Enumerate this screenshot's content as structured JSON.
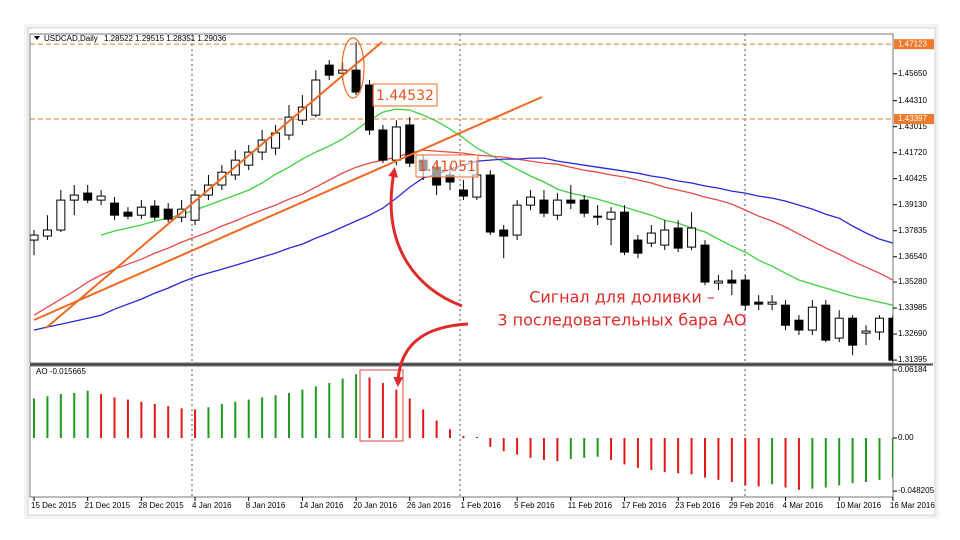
{
  "chart_data": [
    {
      "type": "candlestick",
      "title": "USDCAD,Daily",
      "quote": "1.28522 1.29515 1.28351 1.29036",
      "categories": [
        "15 Dec 2015",
        null,
        null,
        null,
        "21 Dec 2015",
        null,
        null,
        null,
        "28 Dec 2015",
        null,
        null,
        null,
        "4 Jan 2016",
        null,
        null,
        null,
        "8 Jan 2016",
        null,
        null,
        null,
        "14 Jan 2016",
        null,
        null,
        null,
        "20 Jan 2016",
        null,
        null,
        null,
        "26 Jan 2016",
        null,
        null,
        null,
        "1 Feb 2016",
        null,
        null,
        null,
        "5 Feb 2016",
        null,
        null,
        null,
        "11 Feb 2016",
        null,
        null,
        null,
        "17 Feb 2016",
        null,
        null,
        null,
        "23 Feb 2016",
        null,
        null,
        null,
        "29 Feb 2016",
        null,
        null,
        null,
        "4 Mar 2016",
        null,
        null,
        null,
        "10 Mar 2016",
        null,
        null,
        null,
        "16 Mar 2016"
      ],
      "open": [
        1.3737,
        1.3757,
        1.3787,
        1.3936,
        1.3971,
        1.3936,
        1.3921,
        1.3876,
        1.3861,
        1.3906,
        1.3891,
        1.3851,
        1.3836,
        1.3961,
        1.4011,
        1.4061,
        1.411,
        1.4175,
        1.4195,
        1.426,
        1.4334,
        1.4359,
        1.4608,
        1.4568,
        1.4583,
        1.4509,
        1.4285,
        1.4135,
        1.431,
        1.4135,
        1.41,
        1.4061,
        1.3986,
        1.3951,
        1.4061,
        1.3787,
        1.3762,
        1.3911,
        1.3936,
        1.3861,
        1.3936,
        1.3936,
        1.3856,
        1.3841,
        1.3876,
        1.3737,
        1.3722,
        1.3712,
        1.3797,
        1.3702,
        1.3712,
        1.3523,
        1.3538,
        1.3538,
        1.3428,
        1.3418,
        1.3413,
        1.3338,
        1.3289,
        1.3413,
        1.3249,
        1.3348,
        1.3274,
        1.3279,
        1.3348
      ],
      "high": [
        1.3787,
        1.3861,
        1.3986,
        1.4011,
        1.4011,
        1.3986,
        1.3951,
        1.3901,
        1.3936,
        1.3936,
        1.3921,
        1.3936,
        1.3986,
        1.4061,
        1.411,
        1.4185,
        1.421,
        1.4285,
        1.431,
        1.4409,
        1.4459,
        1.4583,
        1.4633,
        1.4623,
        1.4723,
        1.4534,
        1.431,
        1.4334,
        1.4349,
        1.416,
        1.4135,
        1.411,
        1.4036,
        1.4135,
        1.4085,
        1.3812,
        1.3936,
        1.3986,
        1.3986,
        1.3971,
        1.4011,
        1.3961,
        1.3911,
        1.3901,
        1.3911,
        1.3762,
        1.3812,
        1.3836,
        1.3836,
        1.3876,
        1.3737,
        1.3563,
        1.3588,
        1.3563,
        1.3463,
        1.3463,
        1.3438,
        1.3363,
        1.3438,
        1.3438,
        1.3388,
        1.3363,
        1.3313,
        1.3363,
        1.3363
      ],
      "low": [
        1.3662,
        1.3737,
        1.3777,
        1.3861,
        1.3921,
        1.3911,
        1.3836,
        1.3841,
        1.3841,
        1.3836,
        1.3826,
        1.3826,
        1.3812,
        1.3936,
        1.3986,
        1.4036,
        1.4085,
        1.4135,
        1.416,
        1.4235,
        1.431,
        1.4349,
        1.4534,
        1.4534,
        1.4459,
        1.426,
        1.412,
        1.411,
        1.41,
        1.4036,
        1.3961,
        1.3986,
        1.3936,
        1.3936,
        1.3762,
        1.3647,
        1.3737,
        1.3886,
        1.3851,
        1.3836,
        1.3891,
        1.3851,
        1.3812,
        1.3712,
        1.3662,
        1.3647,
        1.3702,
        1.3687,
        1.3677,
        1.3687,
        1.3513,
        1.3488,
        1.3463,
        1.3388,
        1.3388,
        1.3388,
        1.3289,
        1.3264,
        1.3264,
        1.3229,
        1.3229,
        1.3164,
        1.3214,
        1.3239,
        1.3129
      ],
      "close": [
        1.3762,
        1.3787,
        1.3936,
        1.3961,
        1.3936,
        1.3956,
        1.3861,
        1.3856,
        1.3901,
        1.3851,
        1.3841,
        1.3891,
        1.3961,
        1.4011,
        1.4075,
        1.4135,
        1.4175,
        1.4235,
        1.427,
        1.4349,
        1.4399,
        1.4534,
        1.4558,
        1.4583,
        1.4474,
        1.4285,
        1.4135,
        1.43,
        1.412,
        1.4085,
        1.4011,
        1.4026,
        1.3956,
        1.4061,
        1.3777,
        1.3757,
        1.3911,
        1.3951,
        1.3871,
        1.3936,
        1.3921,
        1.3871,
        1.3851,
        1.3876,
        1.3677,
        1.3672,
        1.3772,
        1.3787,
        1.3697,
        1.3797,
        1.3528,
        1.3533,
        1.3523,
        1.3413,
        1.3418,
        1.3428,
        1.3313,
        1.3289,
        1.3403,
        1.3239,
        1.3348,
        1.3214,
        1.3284,
        1.3348,
        1.3139
      ],
      "up_color": "#ffffff",
      "down_color": "#000000",
      "lines": [
        {
          "color": "#3fd13f",
          "values": [
            null,
            null,
            null,
            null,
            null,
            1.3762,
            1.3782,
            1.3797,
            1.3812,
            1.3832,
            1.3846,
            1.3866,
            1.3886,
            1.3911,
            1.3936,
            1.3961,
            1.3986,
            1.4021,
            1.4065,
            1.41,
            1.414,
            1.4175,
            1.4205,
            1.424,
            1.4285,
            1.4334,
            1.4374,
            1.4389,
            1.4384,
            1.4359,
            1.4329,
            1.429,
            1.4245,
            1.4195,
            1.416,
            1.4125,
            1.409,
            1.4056,
            1.4026,
            1.3991,
            1.3971,
            1.3956,
            1.3941,
            1.3921,
            1.3901,
            1.3881,
            1.3861,
            1.3836,
            1.3821,
            1.3797,
            1.3777,
            1.3742,
            1.3707,
            1.3677,
            1.3637,
            1.3607,
            1.3572,
            1.3538,
            1.3518,
            1.3498,
            1.3478,
            1.3458,
            1.3443,
            1.3428,
            1.3413
          ]
        },
        {
          "color": "#e84a4a",
          "values": [
            1.3363,
            1.3403,
            1.3443,
            1.3483,
            1.3528,
            1.3563,
            1.3592,
            1.3617,
            1.3642,
            1.3672,
            1.3697,
            1.3727,
            1.3752,
            1.3777,
            1.3807,
            1.3832,
            1.3861,
            1.3886,
            1.3911,
            1.3941,
            1.3966,
            1.4001,
            1.4036,
            1.4071,
            1.41,
            1.412,
            1.4135,
            1.415,
            1.417,
            1.4185,
            1.418,
            1.4175,
            1.417,
            1.416,
            1.4155,
            1.415,
            1.414,
            1.413,
            1.412,
            1.4115,
            1.41,
            1.4085,
            1.4075,
            1.4061,
            1.4051,
            1.4036,
            1.4021,
            1.4001,
            1.3986,
            1.3971,
            1.3951,
            1.3936,
            1.3916,
            1.3886,
            1.3856,
            1.3832,
            1.3802,
            1.3767,
            1.3732,
            1.3697,
            1.3667,
            1.3632,
            1.3602,
            1.3572,
            1.3538
          ]
        },
        {
          "color": "#2a2ad6",
          "values": [
            1.3289,
            1.3304,
            1.3318,
            1.3333,
            1.3348,
            1.3363,
            1.3393,
            1.3418,
            1.3443,
            1.3473,
            1.3498,
            1.3528,
            1.3553,
            1.3573,
            1.3592,
            1.3612,
            1.3632,
            1.3652,
            1.3672,
            1.3697,
            1.3717,
            1.3747,
            1.3772,
            1.3802,
            1.3832,
            1.3861,
            1.3896,
            1.3946,
            1.4001,
            1.4046,
            1.4065,
            1.409,
            1.411,
            1.413,
            1.4135,
            1.414,
            1.414,
            1.4145,
            1.4145,
            1.413,
            1.412,
            1.411,
            1.41,
            1.409,
            1.408,
            1.407,
            1.4056,
            1.4046,
            1.4031,
            1.4021,
            1.4006,
            1.3996,
            1.3981,
            1.3971,
            1.3956,
            1.3946,
            1.3931,
            1.3911,
            1.3891,
            1.3866,
            1.3846,
            1.3807,
            1.3772,
            1.3742,
            1.3722
          ]
        }
      ],
      "levels": [
        1.47123,
        1.43397
      ],
      "level_color": "#f07a2a",
      "ylim": [
        1.3125,
        1.4763
      ],
      "yticks": [
        1.31395,
        {
          "value": 1.3269,
          "label": "1.32690"
        },
        1.33985,
        {
          "value": 1.3528,
          "label": "1.35280"
        },
        {
          "value": 1.3654,
          "label": "1.36540"
        },
        1.37835,
        {
          "value": 1.3913,
          "label": "1.39130"
        },
        1.40425,
        {
          "value": 1.4172,
          "label": "1.41720"
        },
        1.43015,
        {
          "value": 1.4431,
          "label": "1.44310"
        },
        {
          "value": 1.4565,
          "label": "1.45650"
        }
      ],
      "annotations": [
        "1.44532",
        "1.41051"
      ],
      "callout": [
        "Сигнал для доливки –",
        "3 последовательных бара АО"
      ]
    },
    {
      "type": "bar",
      "title": "AO -0.015665",
      "values": [
        0.036,
        0.038,
        0.04,
        0.041,
        0.043,
        0.04,
        0.037,
        0.035,
        0.033,
        0.031,
        0.029,
        0.027,
        0.026,
        0.028,
        0.031,
        0.033,
        0.035,
        0.037,
        0.039,
        0.041,
        0.044,
        0.047,
        0.05,
        0.054,
        0.058,
        0.055,
        0.05,
        0.044,
        0.036,
        0.026,
        0.016,
        0.008,
        0.002,
        0.001,
        -0.008,
        -0.012,
        -0.015,
        -0.018,
        -0.02,
        -0.021,
        -0.019,
        -0.018,
        -0.017,
        -0.02,
        -0.024,
        -0.027,
        -0.029,
        -0.031,
        -0.032,
        -0.033,
        -0.036,
        -0.038,
        -0.04,
        -0.043,
        -0.044,
        -0.042,
        -0.045,
        -0.047,
        -0.046,
        -0.045,
        -0.043,
        -0.041,
        -0.04,
        -0.038,
        -0.036
      ],
      "up_color": "#1f9a1f",
      "down_color": "#e01818",
      "ylim": [
        -0.0536,
        0.0655
      ],
      "yticks": [
        0.06184,
        {
          "value": 0,
          "label": "0.00"
        },
        -0.048205
      ]
    }
  ]
}
